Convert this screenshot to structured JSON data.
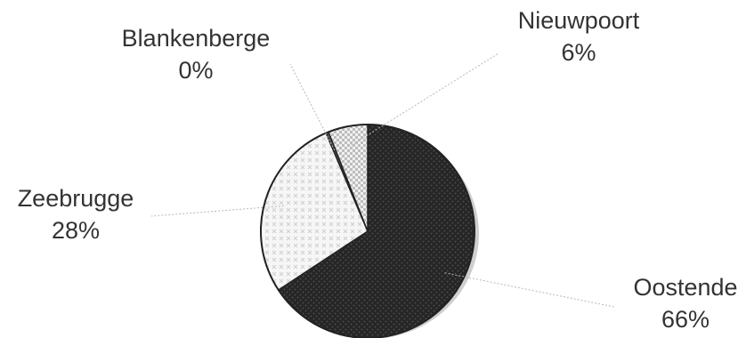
{
  "chart_data": {
    "type": "pie",
    "title": "",
    "slices": [
      {
        "label": "Oostende",
        "value": 66,
        "value_label": "66%",
        "color": "#2b2b2b",
        "pattern": "dark-dots"
      },
      {
        "label": "Zeebrugge",
        "value": 28,
        "value_label": "28%",
        "color": "#f4f4f4",
        "pattern": "light-crosses"
      },
      {
        "label": "Blankenberge",
        "value": 0.4,
        "value_label": "0%",
        "color": "#555555",
        "pattern": "solid"
      },
      {
        "label": "Nieuwpoort",
        "value": 6,
        "value_label": "6%",
        "color": "#d9d9d9",
        "pattern": "checker"
      }
    ],
    "start": "top, clockwise",
    "legend": "none",
    "labels": "outside with leader lines"
  }
}
